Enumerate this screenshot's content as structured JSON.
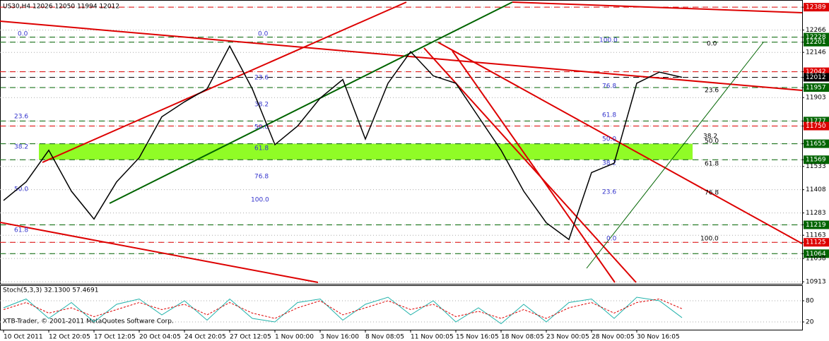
{
  "chart_data": [
    {
      "type": "line",
      "title": "US30,H4  12026 12050 11994 12012",
      "footer": "XTB-Trader, © 2001-2011 MetaQuotes Software Corp.",
      "categories": [
        "10 Oct 2011",
        null,
        "12 Oct 20:05",
        null,
        "17 Oct 12:05",
        null,
        "20 Oct 04:05",
        null,
        "24 Oct 20:05",
        null,
        "27 Oct 12:05",
        null,
        "1 Nov 00:00",
        null,
        "3 Nov 16:00",
        null,
        "8 Nov 08:05",
        null,
        "11 Nov 00:05",
        null,
        "15 Nov 16:05",
        null,
        "18 Nov 08:05",
        null,
        "23 Nov 00:05",
        null,
        "28 Nov 00:05",
        null,
        "30 Nov 16:05",
        null,
        null
      ],
      "series": [
        {
          "color": "#000000",
          "values": [
            11350,
            11450,
            11620,
            11400,
            11250,
            11450,
            11580,
            11800,
            11880,
            11950,
            12180,
            11950,
            11650,
            11750,
            11900,
            12000,
            11680,
            11980,
            12150,
            12020,
            11980,
            11800,
            11620,
            11400,
            11230,
            11140,
            11500,
            11550,
            11980,
            12040,
            12012
          ]
        }
      ],
      "ylim": [
        10902,
        12420
      ],
      "yticks": [
        12389,
        12266,
        12228,
        12201,
        12146,
        12042,
        12012,
        11957,
        11903,
        11777,
        11750,
        11655,
        11569,
        11533,
        11408,
        11283,
        11219,
        11163,
        11125,
        11064,
        11038,
        10913
      ],
      "levels": [
        {
          "value": 12389,
          "color": "#dd0000"
        },
        {
          "value": 12228,
          "color": "#006400"
        },
        {
          "value": 12201,
          "color": "#006400"
        },
        {
          "value": 12042,
          "color": "#dd0000"
        },
        {
          "value": 12012,
          "color": "#000000"
        },
        {
          "value": 11957,
          "color": "#006400"
        },
        {
          "value": 11777,
          "color": "#006400"
        },
        {
          "value": 11750,
          "color": "#dd0000"
        },
        {
          "value": 11655,
          "color": "#006400"
        },
        {
          "value": 11569,
          "color": "#006400"
        },
        {
          "value": 11219,
          "color": "#006400"
        },
        {
          "value": 11125,
          "color": "#dd0000"
        },
        {
          "value": 11064,
          "color": "#006400"
        }
      ],
      "zone": {
        "from": 11569,
        "to": 11655,
        "color": "#7cfc00"
      },
      "annotations": [
        "0.0",
        "23.6",
        "38.2",
        "50.0",
        "61.8",
        "0.0",
        "23.6",
        "38.2",
        "50.0",
        "61.8",
        "76.8",
        "100.0",
        "100.0",
        "76.8",
        "61.8",
        "50.0",
        "38.2",
        "23.6",
        "0.0",
        "0.0",
        "23.6",
        "38.2",
        "50.0",
        "61.8",
        "76.8",
        "100.0"
      ],
      "grid": true
    },
    {
      "type": "line",
      "title": "Stoch(5,3,3) 32.1300 57.4691",
      "series": [
        {
          "color": "#20b2aa",
          "values": [
            60,
            85,
            30,
            75,
            20,
            70,
            85,
            40,
            80,
            25,
            85,
            30,
            20,
            75,
            85,
            25,
            70,
            90,
            40,
            80,
            20,
            60,
            15,
            70,
            20,
            75,
            85,
            30,
            90,
            80,
            32.13
          ]
        },
        {
          "color": "#dd0000",
          "values": [
            55,
            75,
            45,
            60,
            35,
            55,
            75,
            55,
            70,
            40,
            75,
            45,
            30,
            60,
            80,
            40,
            60,
            80,
            55,
            70,
            35,
            50,
            30,
            55,
            30,
            60,
            75,
            45,
            75,
            85,
            57.4691
          ]
        }
      ],
      "ylim": [
        0,
        100
      ],
      "yticks": [
        20,
        80
      ]
    }
  ]
}
